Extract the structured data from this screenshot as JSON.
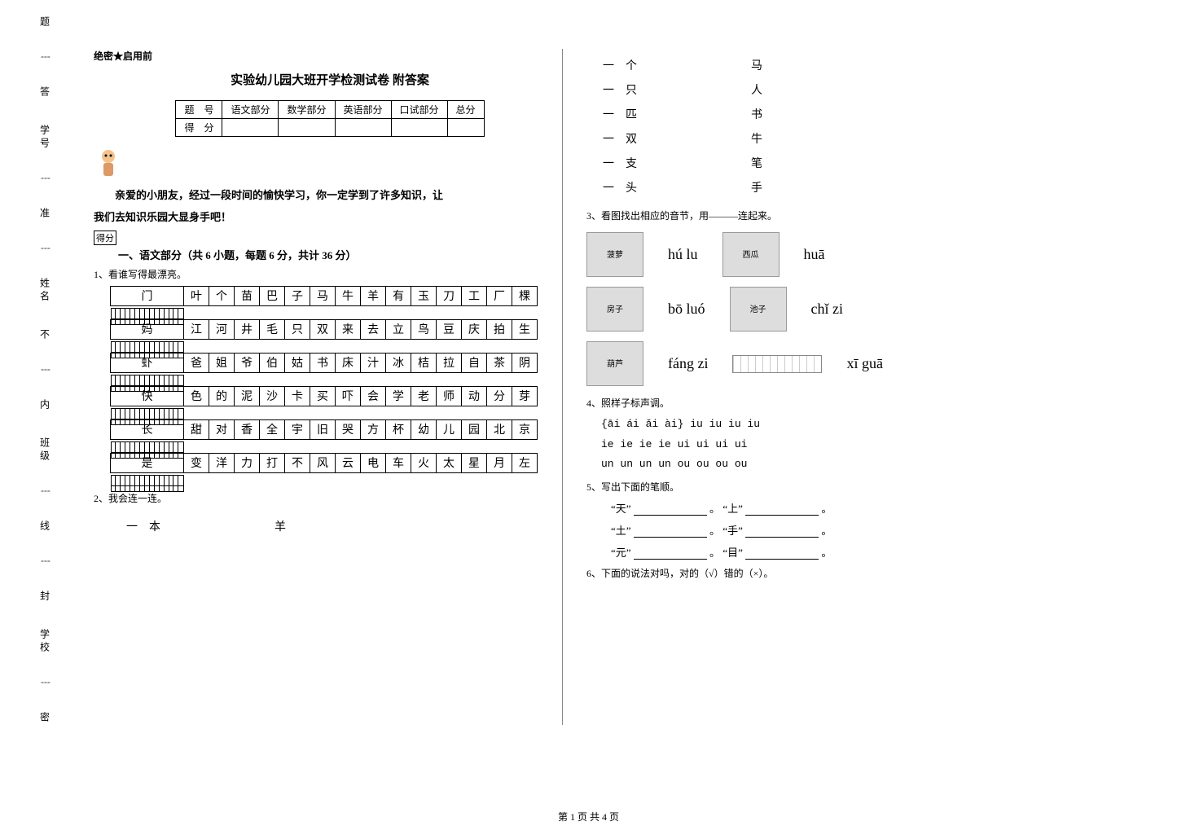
{
  "side": {
    "labels": [
      "题",
      "答",
      "学号",
      "准",
      "姓名",
      "不",
      "内",
      "班级",
      "线",
      "封",
      "学校",
      "密"
    ]
  },
  "secret": "绝密★启用前",
  "title": "实验幼儿园大班开学检测试卷 附答案",
  "score_headers": [
    "题　号",
    "语文部分",
    "数学部分",
    "英语部分",
    "口试部分",
    "总分"
  ],
  "score_row2": "得　分",
  "intro_line1": "　　亲爱的小朋友，经过一段时间的愉快学习，你一定学到了许多知识，让",
  "intro_line2": "我们去知识乐园大显身手吧！",
  "score_label": "得分",
  "section1": "一、语文部分（共 6 小题，每题 6 分，共计 36 分）",
  "q1": "1、看谁写得最漂亮。",
  "grid": [
    [
      "门",
      "叶",
      "个",
      "苗",
      "巴",
      "子",
      "马",
      "牛",
      "羊",
      "有",
      "玉",
      "刀",
      "工",
      "厂",
      "棵"
    ],
    [
      "妈",
      "江",
      "河",
      "井",
      "毛",
      "只",
      "双",
      "来",
      "去",
      "立",
      "鸟",
      "豆",
      "庆",
      "拍",
      "生"
    ],
    [
      "虾",
      "爸",
      "姐",
      "爷",
      "伯",
      "姑",
      "书",
      "床",
      "汁",
      "冰",
      "桔",
      "拉",
      "自",
      "茶",
      "阴"
    ],
    [
      "快",
      "色",
      "的",
      "泥",
      "沙",
      "卡",
      "买",
      "吓",
      "会",
      "学",
      "老",
      "师",
      "动",
      "分",
      "芽"
    ],
    [
      "长",
      "甜",
      "对",
      "香",
      "全",
      "宇",
      "旧",
      "哭",
      "方",
      "杯",
      "幼",
      "儿",
      "园",
      "北",
      "京"
    ],
    [
      "是",
      "变",
      "洋",
      "力",
      "打",
      "不",
      "风",
      "云",
      "电",
      "车",
      "火",
      "太",
      "星",
      "月",
      "左"
    ]
  ],
  "q2": "2、我会连一连。",
  "match_left": [
    "一　本",
    "一　个",
    "一　只",
    "一　匹",
    "一　双",
    "一　支",
    "一　头"
  ],
  "match_right": [
    "羊",
    "马",
    "人",
    "书",
    "牛",
    "笔",
    "手"
  ],
  "q3": "3、看图找出相应的音节，用———连起来。",
  "pinyin_rows": [
    {
      "img": "菠萝",
      "left": "hú lu",
      "img2": "西瓜",
      "right": "huā"
    },
    {
      "img": "房子",
      "left": "bō luó",
      "img2": "池子",
      "right": "chǐ zi"
    },
    {
      "img": "葫芦",
      "left": "fáng zi",
      "img2": "尺子",
      "right": "xī guā"
    }
  ],
  "q4": "4、照样子标声调。",
  "tones": [
    "{āi  ái  ǎi  ài}     iu  iu  iu  iu",
    " ie  ie  ie  ie      ui  ui  ui  ui",
    " un  un  un  un      ou  ou  ou  ou"
  ],
  "q5": "5、写出下面的笔顺。",
  "strokes": [
    {
      "a": "“天”",
      "b": "“上”"
    },
    {
      "a": "“土”",
      "b": "“手”"
    },
    {
      "a": "“元”",
      "b": "“目”"
    }
  ],
  "q6": "6、下面的说法对吗，对的（√）错的（×）。",
  "footer": "第 1 页 共 4 页",
  "period": "。"
}
